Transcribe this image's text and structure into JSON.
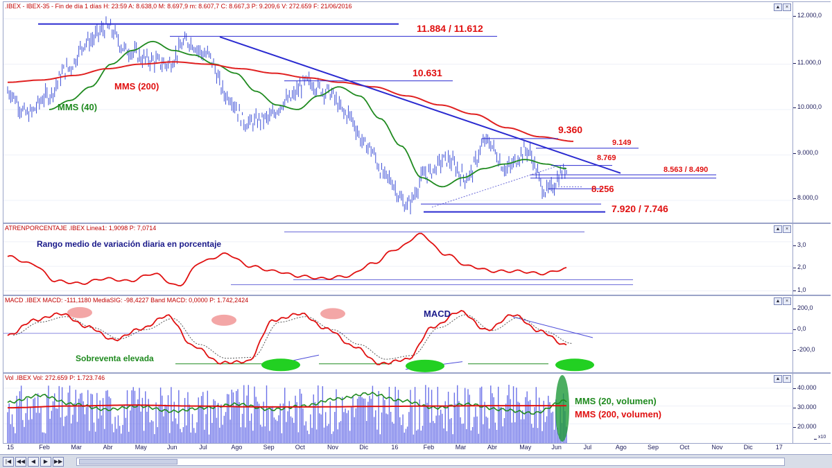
{
  "price_panel": {
    "header": ".IBEX - IBEX-35 - Fin de día 1 días H: 23:59  A: 8.638,0  M: 8.697,9  m: 8.607,7  C: 8.667,3  P: 9.209,6  V: 272.659  F: 21/06/2016",
    "annotations": {
      "top_levels": "11.884  / 11.612",
      "level_10631": "10.631",
      "level_9360": "9.360",
      "level_9149": "9.149",
      "level_8769": "8.769",
      "level_8563": "8.563 / 8.490",
      "level_8256": "8.256",
      "level_7920": "7.920 / 7.746",
      "mms200": "MMS (200)",
      "mms40": "MMS (40)"
    },
    "axis_ticks": [
      "12.000,0",
      "11.000,0",
      "10.000,0",
      "9.000,0",
      "8.000,0"
    ],
    "colors": {
      "price": "#3d4fd6",
      "mms40": "#1f8a1f",
      "mms200": "#e02020",
      "lines": "#2a2ad0",
      "text_red": "#e01010"
    }
  },
  "atr_panel": {
    "header": "ATRENPORCENTAJE  .IBEX Linea1: 1,9098  P: 7,0714",
    "title": "Rango medio de variación diaria en porcentaje",
    "axis_ticks": [
      "3,0",
      "2,0",
      "1,0"
    ]
  },
  "macd_panel": {
    "header": "MACD  .IBEX MACD: -111,1180  MediaSIG: -98,4227  Band  MACD: 0,0000  P: 1.742,2424",
    "label_macd": "MACD",
    "label_oversold": "Sobreventa elevada",
    "axis_ticks": [
      "200,0",
      "0,0",
      "-200,0"
    ]
  },
  "volume_panel": {
    "header": "Vol  .IBEX Vol: 272.659  P: 1.723.746",
    "label_mms20": "MMS (20, volumen)",
    "label_mms200": "MMS (200, volumen)",
    "axis_ticks": [
      "40.000",
      "30.000",
      "20.000"
    ],
    "axis_unit": "x10"
  },
  "time_axis": {
    "labels": [
      "15",
      "Feb",
      "Mar",
      "Abr",
      "May",
      "Jun",
      "Jul",
      "Ago",
      "Sep",
      "Oct",
      "Nov",
      "Dic",
      "16",
      "Feb",
      "Mar",
      "Abr",
      "May",
      "Jun",
      "Jul",
      "Ago",
      "Sep",
      "Oct",
      "Nov",
      "Dic",
      "17"
    ]
  },
  "chart_data": {
    "type": "line",
    "title": ".IBEX - IBEX-35",
    "x_range": [
      "2015-01",
      "2016-06-21"
    ],
    "series": [
      {
        "name": "Precio (C)",
        "values": [
          10400,
          9900,
          10300,
          10900,
          11500,
          11800,
          11300,
          11100,
          11000,
          11500,
          11200,
          10300,
          9700,
          9800,
          10200,
          10600,
          10400,
          9900,
          9200,
          8500,
          7900,
          8600,
          8900,
          8500,
          9300,
          8700,
          9100,
          8200,
          8667
        ]
      },
      {
        "name": "MMS (40)",
        "values": [
          10000,
          10200,
          10500,
          11000,
          11300,
          11500,
          11300,
          11200,
          11000,
          10800,
          10400,
          10100,
          10000,
          10300,
          10500,
          10300,
          9800,
          9200,
          8500,
          8300,
          8500,
          8700,
          8800,
          8900,
          8800,
          8700
        ]
      },
      {
        "name": "MMS (200)",
        "values": [
          10600,
          10650,
          10750,
          10900,
          11000,
          11050,
          11000,
          10900,
          10800,
          10700,
          10600,
          10500,
          10300,
          10100,
          9900,
          9600,
          9400,
          9300
        ]
      }
    ],
    "ylim": [
      7600,
      12000
    ],
    "levels": [
      11884,
      11612,
      10631,
      9360,
      9149,
      8769,
      8563,
      8490,
      8256,
      7920,
      7746
    ],
    "atr": {
      "values": [
        2.4,
        2.1,
        1.4,
        1.3,
        1.5,
        1.4,
        1.7,
        1.2,
        2.2,
        2.5,
        2.0,
        1.8,
        1.6,
        1.5,
        1.6,
        2.1,
        2.7,
        3.3,
        2.5,
        2.0,
        1.8,
        1.8,
        1.7,
        1.9
      ],
      "ylim": [
        0.9,
        3.5
      ]
    },
    "macd": {
      "values": [
        -20,
        120,
        180,
        60,
        -60,
        40,
        160,
        -120,
        -270,
        -260,
        120,
        180,
        40,
        -120,
        -280,
        -240,
        60,
        200,
        30,
        170,
        20,
        -110
      ],
      "ylim": [
        -320,
        240
      ]
    },
    "volume": {
      "ylim": [
        10000,
        45000
      ],
      "mms20": [
        32000,
        36000,
        31000,
        28000,
        30000,
        27000,
        29000,
        31000,
        28000,
        30000,
        34000,
        37000,
        33000,
        29000,
        31000,
        28000,
        26000,
        33000
      ],
      "mms200": [
        29000,
        30000,
        30500,
        30000,
        29500,
        29500,
        29800,
        30000,
        30200,
        30200
      ]
    }
  }
}
